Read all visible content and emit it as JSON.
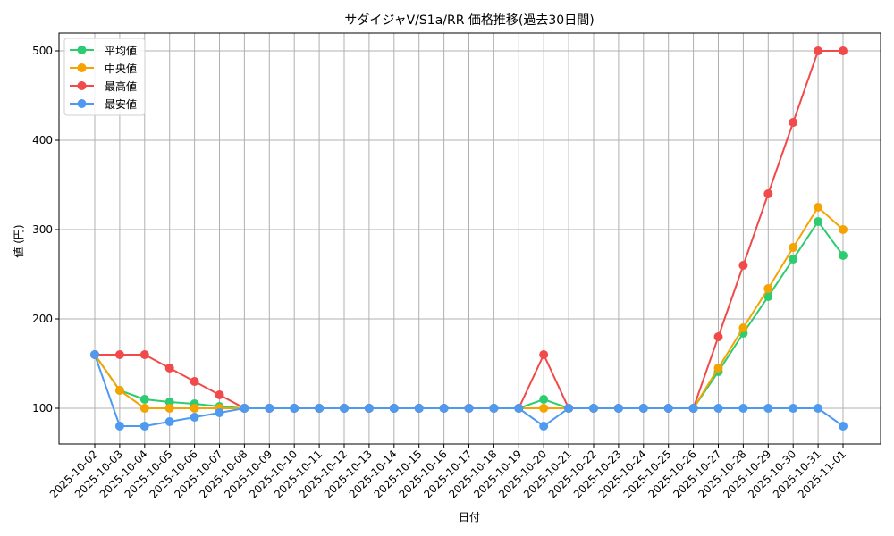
{
  "chart_data": {
    "type": "line",
    "title": "サダイジャV/S1a/RR 価格推移(過去30日間)",
    "xlabel": "日付",
    "ylabel": "値 (円)",
    "ylim": [
      60,
      520
    ],
    "yticks": [
      100,
      200,
      300,
      400,
      500
    ],
    "grid": true,
    "legend_position": "upper left",
    "categories": [
      "2025-10-02",
      "2025-10-03",
      "2025-10-04",
      "2025-10-05",
      "2025-10-06",
      "2025-10-07",
      "2025-10-08",
      "2025-10-09",
      "2025-10-10",
      "2025-10-11",
      "2025-10-12",
      "2025-10-13",
      "2025-10-14",
      "2025-10-15",
      "2025-10-16",
      "2025-10-17",
      "2025-10-18",
      "2025-10-19",
      "2025-10-20",
      "2025-10-21",
      "2025-10-22",
      "2025-10-23",
      "2025-10-24",
      "2025-10-25",
      "2025-10-26",
      "2025-10-27",
      "2025-10-28",
      "2025-10-29",
      "2025-10-30",
      "2025-10-31",
      "2025-11-01"
    ],
    "series": [
      {
        "name": "平均値",
        "color": "#2ecc71",
        "values": [
          160,
          120,
          110,
          107,
          105,
          102,
          100,
          100,
          100,
          100,
          100,
          100,
          100,
          100,
          100,
          100,
          100,
          100,
          110,
          100,
          100,
          100,
          100,
          100,
          100,
          141,
          184,
          225,
          267,
          309,
          271
        ]
      },
      {
        "name": "中央値",
        "color": "#f5a300",
        "values": [
          160,
          120,
          100,
          100,
          100,
          100,
          100,
          100,
          100,
          100,
          100,
          100,
          100,
          100,
          100,
          100,
          100,
          100,
          100,
          100,
          100,
          100,
          100,
          100,
          100,
          145,
          190,
          234,
          280,
          325,
          300
        ]
      },
      {
        "name": "最高値",
        "color": "#f04a4a",
        "values": [
          160,
          160,
          160,
          145,
          130,
          115,
          100,
          100,
          100,
          100,
          100,
          100,
          100,
          100,
          100,
          100,
          100,
          100,
          160,
          100,
          100,
          100,
          100,
          100,
          100,
          180,
          260,
          340,
          420,
          500,
          500
        ]
      },
      {
        "name": "最安値",
        "color": "#4d9af0",
        "values": [
          160,
          80,
          80,
          85,
          90,
          95,
          100,
          100,
          100,
          100,
          100,
          100,
          100,
          100,
          100,
          100,
          100,
          100,
          80,
          100,
          100,
          100,
          100,
          100,
          100,
          100,
          100,
          100,
          100,
          100,
          80
        ]
      }
    ]
  }
}
